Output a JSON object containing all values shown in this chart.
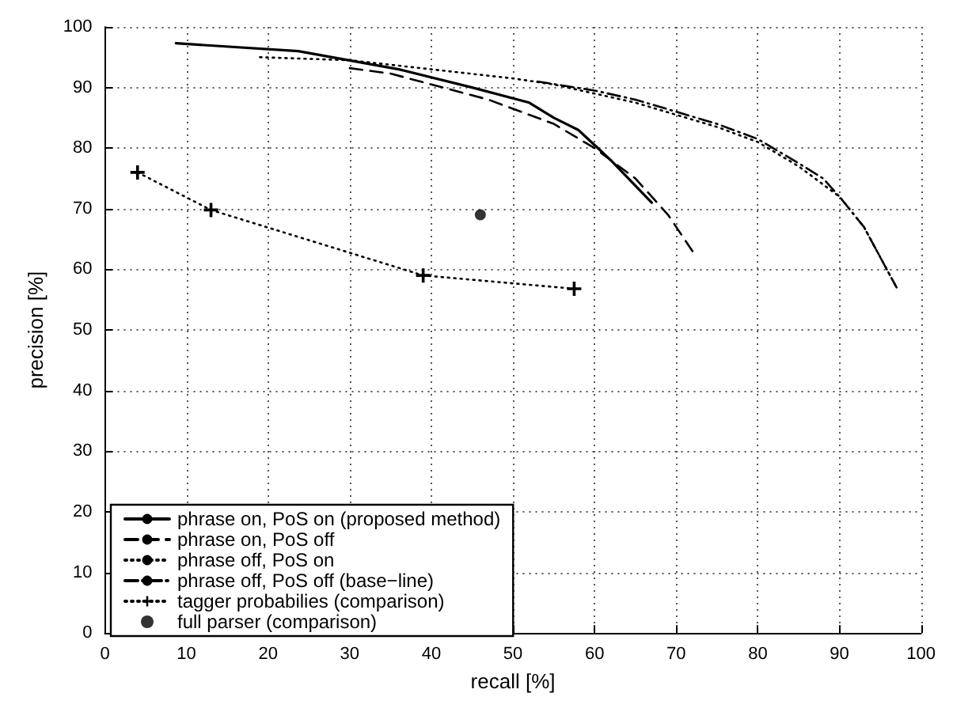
{
  "chart_data": {
    "type": "line",
    "xlabel": "recall [%]",
    "ylabel": "precision [%]",
    "xlim": [
      0,
      100
    ],
    "ylim": [
      0,
      100
    ],
    "xticks": [
      0,
      10,
      20,
      30,
      40,
      50,
      60,
      70,
      80,
      90,
      100
    ],
    "yticks": [
      0,
      10,
      20,
      30,
      40,
      50,
      60,
      70,
      80,
      90,
      100
    ],
    "grid": true,
    "legend": "bottom left",
    "marker": "none",
    "series": [
      {
        "name": "phrase on, PoS on (proposed method)",
        "color": "#000000",
        "line_style": "solid",
        "x": [
          8.7,
          23.7,
          36,
          45,
          52,
          55,
          58,
          62,
          67
        ],
        "values": [
          97.3,
          96.0,
          93,
          90,
          87.5,
          85,
          83,
          78,
          71
        ]
      },
      {
        "name": "phrase on, PoS off",
        "color": "#000000",
        "line_style": "dashed",
        "x": [
          30,
          35,
          40,
          47,
          55,
          60,
          65,
          69,
          72
        ],
        "values": [
          93.2,
          92.3,
          90.5,
          88,
          84,
          80,
          75,
          69,
          63
        ]
      },
      {
        "name": "phrase off, PoS on",
        "color": "#000000",
        "line_style": "dotted",
        "x": [
          19,
          30,
          40,
          50,
          55,
          60,
          65,
          70,
          75,
          80,
          85,
          90,
          93,
          95,
          97
        ],
        "values": [
          95,
          94.5,
          93,
          91.5,
          90.5,
          89,
          87.5,
          85.5,
          83.5,
          81,
          77,
          72,
          67,
          62,
          57
        ]
      },
      {
        "name": "phrase off, PoS off (base−line)",
        "color": "#000000",
        "line_style": "dashdot",
        "x": [
          53,
          60,
          65,
          70,
          75,
          80,
          85,
          88,
          90,
          93,
          95,
          97
        ],
        "values": [
          91,
          89.5,
          88,
          86,
          84,
          81.5,
          77.5,
          75,
          72,
          67,
          62,
          57
        ]
      },
      {
        "name": "tagger probabilies (comparison)",
        "color": "#000000",
        "line_style": "dotted",
        "marker": "cross",
        "x": [
          4,
          13,
          39,
          57.5
        ],
        "values": [
          76,
          69.8,
          59,
          56.8
        ]
      },
      {
        "name": "full parser (comparison)",
        "type": "scatter",
        "color": "#000000",
        "marker": "circle",
        "x": [
          46
        ],
        "values": [
          69
        ]
      }
    ]
  }
}
